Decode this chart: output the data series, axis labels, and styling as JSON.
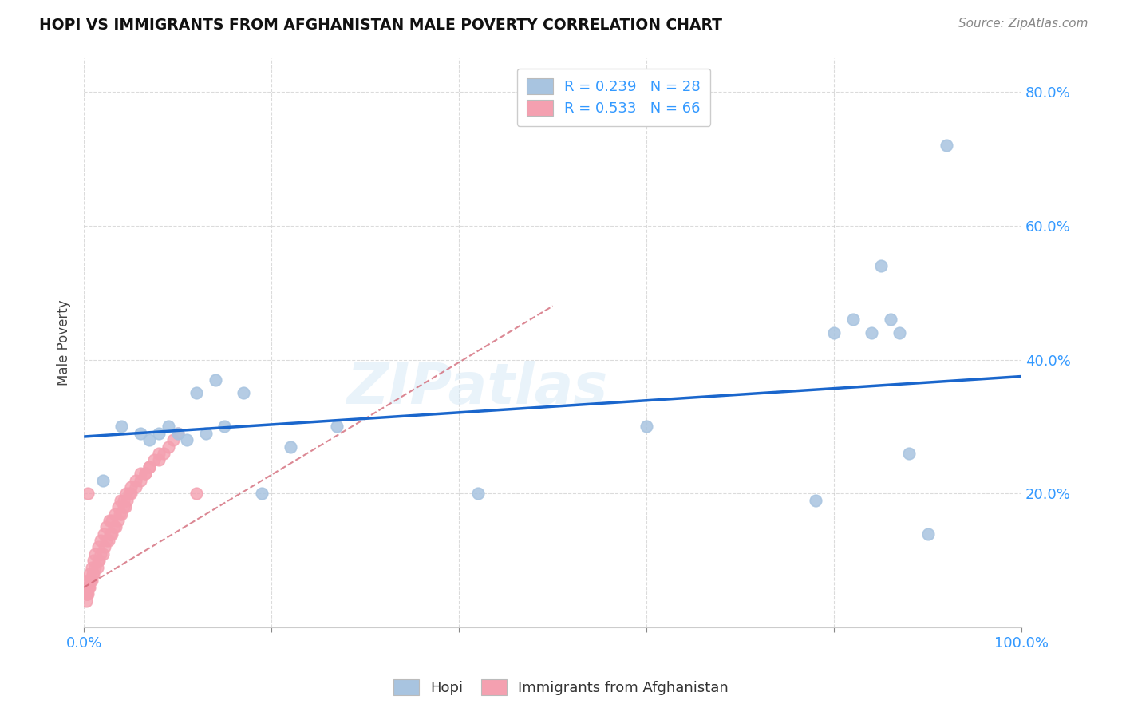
{
  "title": "HOPI VS IMMIGRANTS FROM AFGHANISTAN MALE POVERTY CORRELATION CHART",
  "source": "Source: ZipAtlas.com",
  "ylabel": "Male Poverty",
  "xlim": [
    0,
    1.0
  ],
  "ylim": [
    0,
    0.85
  ],
  "hopi_R": 0.239,
  "hopi_N": 28,
  "afg_R": 0.533,
  "afg_N": 66,
  "hopi_color": "#a8c4e0",
  "afg_color": "#f4a0b0",
  "hopi_line_color": "#1a66cc",
  "afg_line_color": "#d06070",
  "hopi_x": [
    0.02,
    0.04,
    0.06,
    0.07,
    0.08,
    0.09,
    0.1,
    0.11,
    0.12,
    0.13,
    0.14,
    0.15,
    0.17,
    0.19,
    0.22,
    0.27,
    0.42,
    0.6,
    0.78,
    0.8,
    0.82,
    0.84,
    0.85,
    0.86,
    0.87,
    0.88,
    0.9,
    0.92
  ],
  "hopi_y": [
    0.22,
    0.3,
    0.29,
    0.28,
    0.29,
    0.3,
    0.29,
    0.28,
    0.35,
    0.29,
    0.37,
    0.3,
    0.35,
    0.2,
    0.27,
    0.3,
    0.2,
    0.3,
    0.19,
    0.44,
    0.46,
    0.44,
    0.54,
    0.46,
    0.44,
    0.26,
    0.14,
    0.72
  ],
  "afg_x": [
    0.002,
    0.003,
    0.004,
    0.005,
    0.006,
    0.007,
    0.008,
    0.009,
    0.01,
    0.012,
    0.014,
    0.015,
    0.016,
    0.018,
    0.02,
    0.022,
    0.024,
    0.026,
    0.028,
    0.03,
    0.032,
    0.034,
    0.036,
    0.038,
    0.04,
    0.042,
    0.044,
    0.046,
    0.048,
    0.05,
    0.055,
    0.06,
    0.065,
    0.07,
    0.075,
    0.08,
    0.085,
    0.09,
    0.095,
    0.1,
    0.002,
    0.003,
    0.004,
    0.006,
    0.008,
    0.01,
    0.012,
    0.015,
    0.018,
    0.021,
    0.024,
    0.027,
    0.03,
    0.033,
    0.036,
    0.039,
    0.042,
    0.045,
    0.05,
    0.055,
    0.06,
    0.065,
    0.07,
    0.08,
    0.004,
    0.12
  ],
  "afg_y": [
    0.04,
    0.05,
    0.05,
    0.06,
    0.06,
    0.07,
    0.07,
    0.08,
    0.08,
    0.09,
    0.09,
    0.1,
    0.1,
    0.11,
    0.11,
    0.12,
    0.13,
    0.13,
    0.14,
    0.14,
    0.15,
    0.15,
    0.16,
    0.17,
    0.17,
    0.18,
    0.18,
    0.19,
    0.2,
    0.2,
    0.21,
    0.22,
    0.23,
    0.24,
    0.25,
    0.25,
    0.26,
    0.27,
    0.28,
    0.29,
    0.05,
    0.06,
    0.07,
    0.08,
    0.09,
    0.1,
    0.11,
    0.12,
    0.13,
    0.14,
    0.15,
    0.16,
    0.16,
    0.17,
    0.18,
    0.19,
    0.19,
    0.2,
    0.21,
    0.22,
    0.23,
    0.23,
    0.24,
    0.26,
    0.2,
    0.2
  ],
  "hopi_trend_x": [
    0.0,
    1.0
  ],
  "hopi_trend_y": [
    0.285,
    0.375
  ],
  "afg_trend_x": [
    0.0,
    0.5
  ],
  "afg_trend_y": [
    0.06,
    0.48
  ]
}
